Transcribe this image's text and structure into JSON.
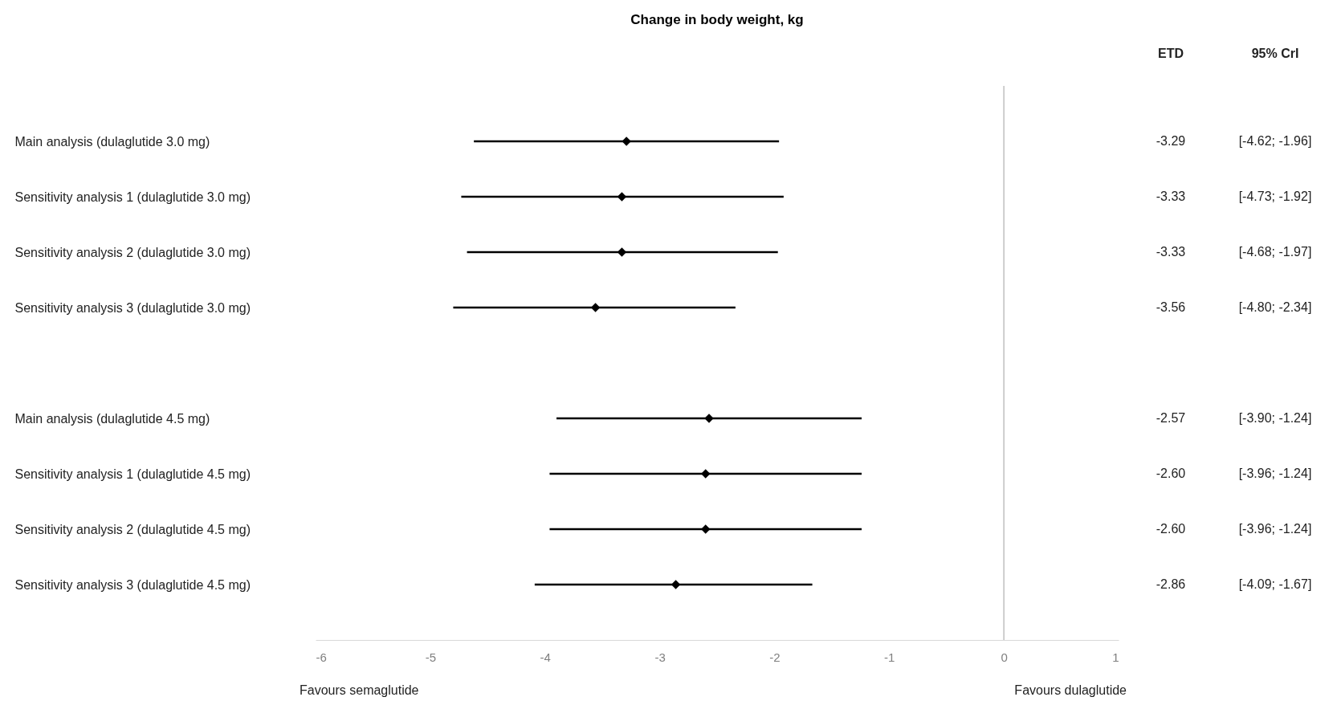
{
  "chart_data": {
    "type": "scatter",
    "title": "Change in body weight, kg",
    "categories": [
      "Main analysis (dulaglutide 3.0 mg)",
      "Sensitivity analysis 1 (dulaglutide 3.0 mg)",
      "Sensitivity analysis 2 (dulaglutide 3.0 mg)",
      "Sensitivity analysis 3 (dulaglutide 3.0 mg)",
      null,
      "Main analysis (dulaglutide 4.5 mg)",
      "Sensitivity analysis 1 (dulaglutide 4.5 mg)",
      "Sensitivity analysis 2 (dulaglutide 4.5 mg)",
      "Sensitivity analysis 3 (dulaglutide 4.5 mg)"
    ],
    "values": [
      -3.29,
      -3.33,
      -3.33,
      -3.56,
      null,
      -2.57,
      -2.6,
      -2.6,
      -2.86
    ],
    "errors": [
      [
        -4.62,
        -1.96
      ],
      [
        -4.73,
        -1.92
      ],
      [
        -4.68,
        -1.97
      ],
      [
        -4.8,
        -2.34
      ],
      null,
      [
        -3.9,
        -1.24
      ],
      [
        -3.96,
        -1.24
      ],
      [
        -3.96,
        -1.24
      ],
      [
        -4.09,
        -1.67
      ]
    ],
    "value_labels": [
      "-3.29",
      "-3.33",
      "-3.33",
      "-3.56",
      null,
      "-2.57",
      "-2.60",
      "-2.60",
      "-2.86"
    ],
    "color": "#000000",
    "marker": "diamond",
    "xlim": [
      -6,
      1
    ],
    "xticks": [
      -6,
      -5,
      -4,
      -3,
      -2,
      -1,
      0,
      1
    ],
    "ref_lines": [
      {
        "axis": "x",
        "value": 0,
        "color": "#bfbfbf"
      }
    ],
    "orientation": "horizontal",
    "grid": false,
    "annotations": [
      "ETD",
      "95% CrI",
      "Favours semaglutide",
      "Favours dulaglutide",
      "[-4.62; -1.96]",
      "[-4.73; -1.92]",
      "[-4.68; -1.97]",
      "[-4.80; -2.34]",
      "[-3.90; -1.24]",
      "[-3.96; -1.24]",
      "[-3.96; -1.24]",
      "[-4.09; -1.67]"
    ]
  }
}
